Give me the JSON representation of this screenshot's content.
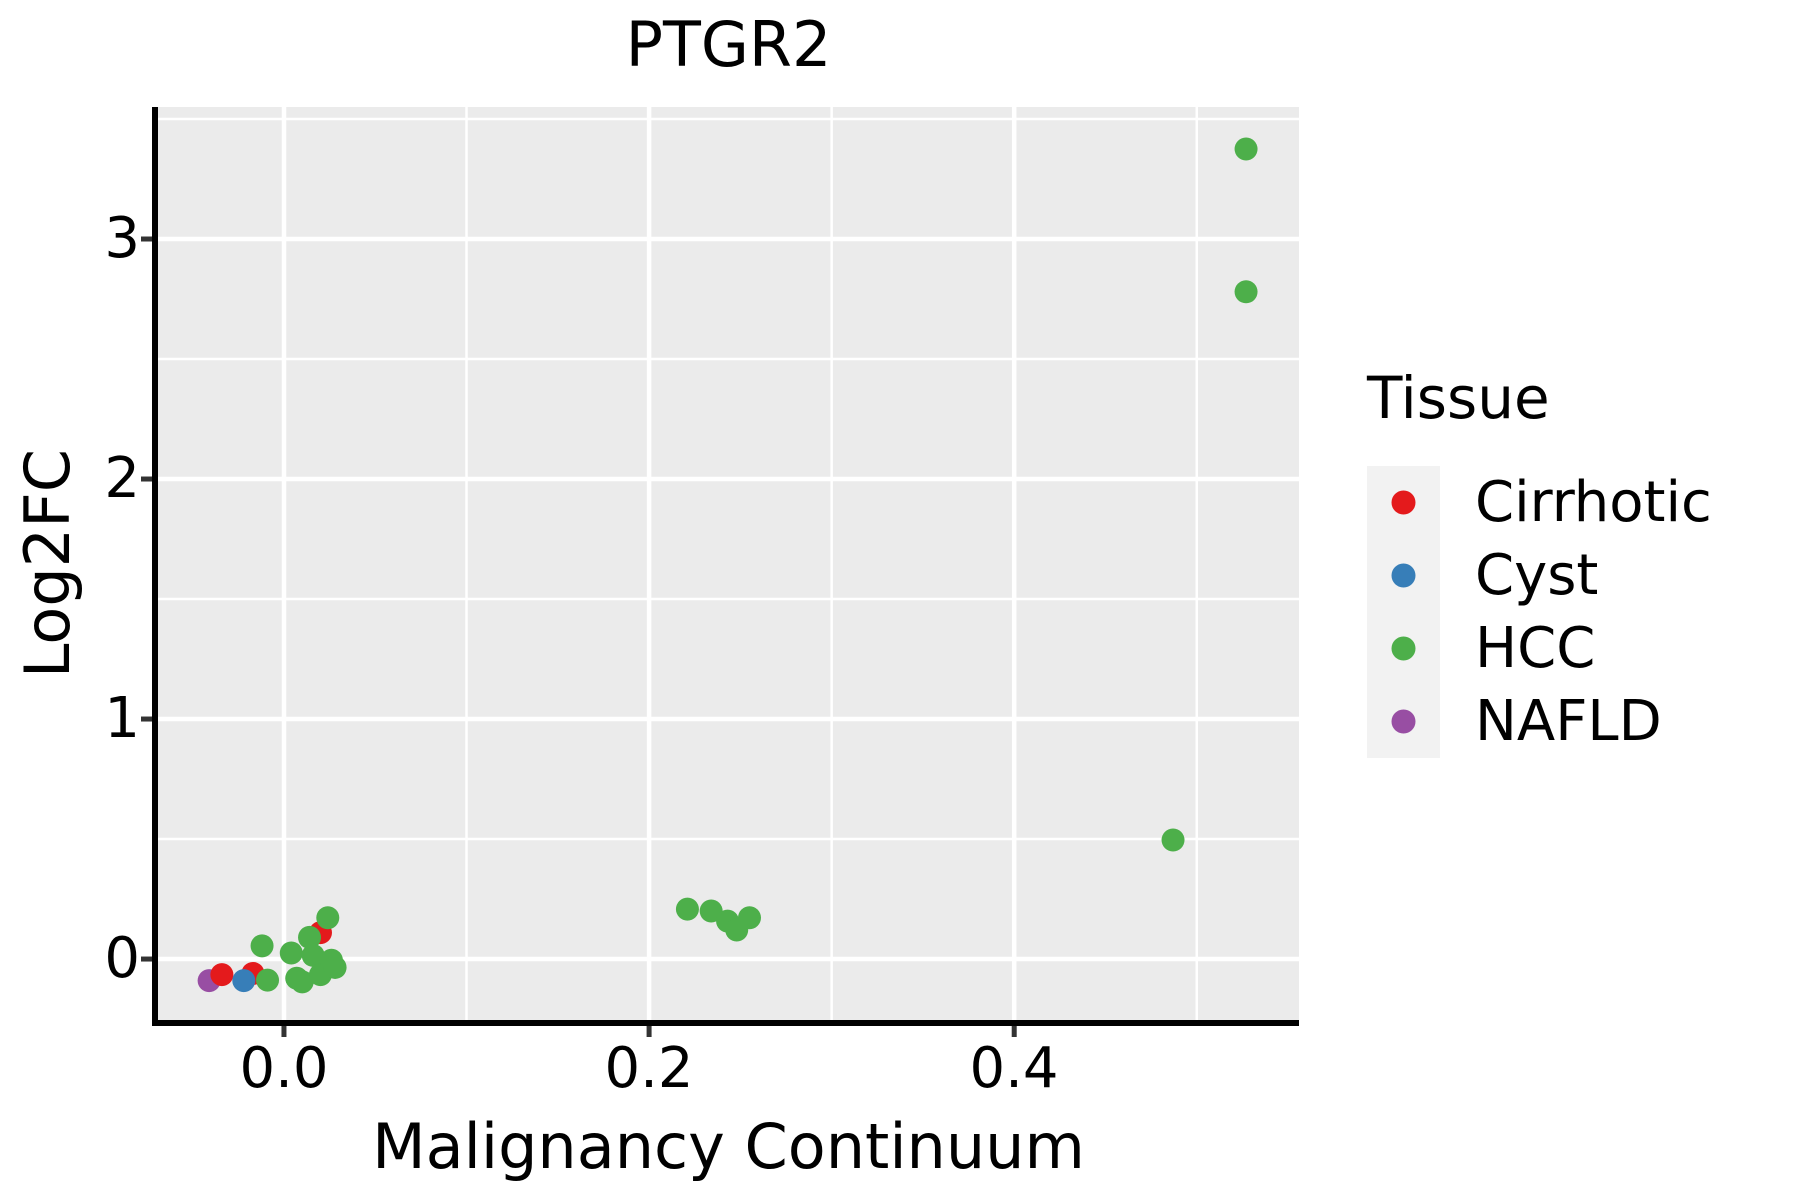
{
  "chart_data": {
    "type": "scatter",
    "title": "PTGR2",
    "xlabel": "Malignancy Continuum",
    "ylabel": "Log2FC",
    "xlim": [
      -0.069,
      0.556
    ],
    "ylim": [
      -0.254,
      3.55
    ],
    "x_major_ticks": [
      0.0,
      0.2,
      0.4
    ],
    "x_tick_labels": [
      "0.0",
      "0.2",
      "0.4"
    ],
    "x_minor_ticks": [
      0.1,
      0.3,
      0.5
    ],
    "y_major_ticks": [
      0,
      1,
      2,
      3
    ],
    "y_tick_labels": [
      "0",
      "1",
      "2",
      "3"
    ],
    "y_minor_ticks": [
      0.5,
      1.5,
      2.5,
      3.5
    ],
    "grid": true,
    "panel_background": "#EBEBEB",
    "gridline_color": "#FFFFFF",
    "axis_line_color": "#000000",
    "tick_color": "#333333",
    "point_radius": 11.5,
    "series": [
      {
        "name": "NAFLD",
        "color": "#984EA3",
        "points": [
          [
            -0.041,
            -0.09
          ]
        ]
      },
      {
        "name": "Cirrhotic",
        "color": "#E41A1C",
        "points": [
          [
            -0.034,
            -0.065
          ],
          [
            -0.017,
            -0.06
          ],
          [
            0.02,
            0.11
          ]
        ]
      },
      {
        "name": "Cyst",
        "color": "#377EB8",
        "points": [
          [
            -0.022,
            -0.09
          ]
        ]
      },
      {
        "name": "HCC",
        "color": "#4DAF4A",
        "points": [
          [
            -0.012,
            0.055
          ],
          [
            -0.009,
            -0.088
          ],
          [
            0.004,
            0.025
          ],
          [
            0.007,
            -0.08
          ],
          [
            0.01,
            -0.095
          ],
          [
            0.014,
            0.09
          ],
          [
            0.016,
            0.015
          ],
          [
            0.02,
            -0.065
          ],
          [
            0.024,
            0.172
          ],
          [
            0.026,
            -0.005
          ],
          [
            0.028,
            -0.035
          ],
          [
            0.221,
            0.208
          ],
          [
            0.234,
            0.2
          ],
          [
            0.243,
            0.158
          ],
          [
            0.248,
            0.121
          ],
          [
            0.255,
            0.172
          ],
          [
            0.487,
            0.496
          ],
          [
            0.527,
            3.375
          ],
          [
            0.527,
            2.78
          ]
        ]
      }
    ],
    "legend": {
      "title": "Tissue",
      "position": "right",
      "entries": [
        {
          "label": "Cirrhotic",
          "color": "#E41A1C"
        },
        {
          "label": "Cyst",
          "color": "#377EB8"
        },
        {
          "label": "HCC",
          "color": "#4DAF4A"
        },
        {
          "label": "NAFLD",
          "color": "#984EA3"
        }
      ]
    }
  }
}
